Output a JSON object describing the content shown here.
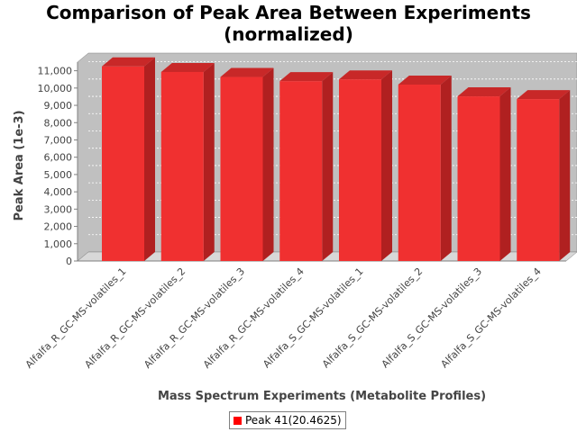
{
  "chart_data": {
    "type": "bar",
    "title_line1": "Comparison of Peak Area Between Experiments",
    "title_line2": "(normalized)",
    "xlabel": "Mass Spectrum Experiments (Metabolite Profiles)",
    "ylabel": "Peak Area (1e-3)",
    "categories": [
      "Alfalfa_R_GC-MS-volatiles_1",
      "Alfalfa_R_GC-MS-volatiles_2",
      "Alfalfa_R_GC-MS-volatiles_3",
      "Alfalfa_R_GC-MS-volatiles_4",
      "Alfalfa_S_GC-MS-volatiles_1",
      "Alfalfa_S_GC-MS-volatiles_2",
      "Alfalfa_S_GC-MS-volatiles_3",
      "Alfalfa_S_GC-MS-volatiles_4"
    ],
    "series": [
      {
        "name": "Peak 41(20.4625)",
        "values": [
          11250,
          10930,
          10640,
          10400,
          10500,
          10200,
          9520,
          9360
        ]
      }
    ],
    "ylim": [
      0,
      11500
    ],
    "yticks": [
      0,
      1000,
      2000,
      3000,
      4000,
      5000,
      6000,
      7000,
      8000,
      9000,
      10000,
      11000
    ],
    "ytick_labels": [
      "0",
      "1,000",
      "2,000",
      "3,000",
      "4,000",
      "5,000",
      "6,000",
      "7,000",
      "8,000",
      "9,000",
      "10,000",
      "11,000"
    ],
    "grid": true,
    "legend_position": "bottom-center",
    "colors": {
      "bar_front": "#f03030",
      "bar_side": "#b02020",
      "bar_top": "#c82828",
      "plot_bg": "#c0c0c0",
      "plot_floor": "#d8d8d8",
      "legend_swatch": "#ff0000"
    }
  }
}
